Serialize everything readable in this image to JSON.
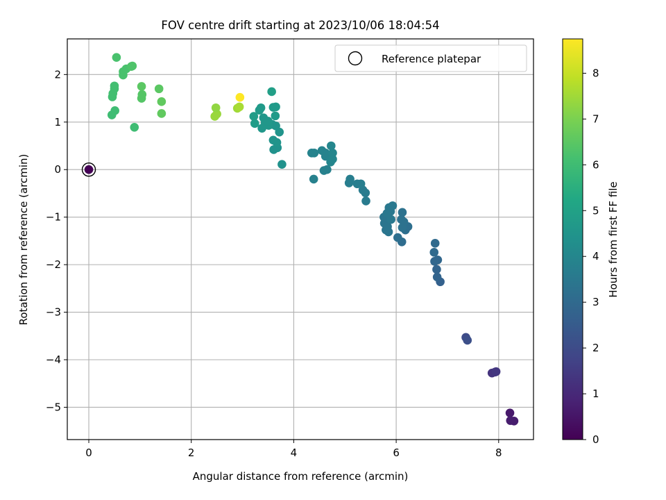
{
  "chart_data": {
    "type": "scatter",
    "title": "FOV centre drift starting at 2023/10/06 18:04:54",
    "xlabel": "Angular distance from reference (arcmin)",
    "ylabel": "Rotation from reference (arcmin)",
    "xlim": [
      -0.42,
      8.68
    ],
    "ylim": [
      -5.68,
      2.75
    ],
    "xticks": [
      {
        "v": 0,
        "label": "0"
      },
      {
        "v": 2,
        "label": "2"
      },
      {
        "v": 4,
        "label": "4"
      },
      {
        "v": 6,
        "label": "6"
      },
      {
        "v": 8,
        "label": "8"
      }
    ],
    "yticks": [
      {
        "v": 2,
        "label": "2"
      },
      {
        "v": 1,
        "label": "1"
      },
      {
        "v": 0,
        "label": "0"
      },
      {
        "v": -1,
        "label": "−1"
      },
      {
        "v": -2,
        "label": "−2"
      },
      {
        "v": -3,
        "label": "−3"
      },
      {
        "v": -4,
        "label": "−4"
      },
      {
        "v": -5,
        "label": "−5"
      }
    ],
    "grid": true,
    "colormap": "viridis",
    "colorbar": {
      "label": "Hours from first FF file",
      "range": [
        0,
        8.75
      ],
      "ticks": [
        {
          "v": 0,
          "label": "0"
        },
        {
          "v": 1,
          "label": "1"
        },
        {
          "v": 2,
          "label": "2"
        },
        {
          "v": 3,
          "label": "3"
        },
        {
          "v": 4,
          "label": "4"
        },
        {
          "v": 5,
          "label": "5"
        },
        {
          "v": 6,
          "label": "6"
        },
        {
          "v": 7,
          "label": "7"
        },
        {
          "v": 8,
          "label": "8"
        }
      ]
    },
    "legend": {
      "placement": "top-right",
      "entries": [
        {
          "label": "Reference platepar",
          "marker": "open-circle"
        }
      ]
    },
    "reference": {
      "x": 0,
      "y": 0,
      "c": 0
    },
    "points": [
      {
        "x": 8.22,
        "y": -5.12,
        "c": 0.6
      },
      {
        "x": 8.23,
        "y": -5.28,
        "c": 0.7
      },
      {
        "x": 8.3,
        "y": -5.29,
        "c": 0.7
      },
      {
        "x": 7.87,
        "y": -4.28,
        "c": 1.3
      },
      {
        "x": 7.93,
        "y": -4.26,
        "c": 1.3
      },
      {
        "x": 7.95,
        "y": -4.25,
        "c": 1.4
      },
      {
        "x": 7.36,
        "y": -3.53,
        "c": 2.0
      },
      {
        "x": 7.39,
        "y": -3.59,
        "c": 2.1
      },
      {
        "x": 6.86,
        "y": -2.36,
        "c": 2.7
      },
      {
        "x": 6.8,
        "y": -2.26,
        "c": 2.8
      },
      {
        "x": 6.79,
        "y": -2.1,
        "c": 2.8
      },
      {
        "x": 6.81,
        "y": -1.9,
        "c": 2.9
      },
      {
        "x": 6.75,
        "y": -1.93,
        "c": 2.9
      },
      {
        "x": 6.74,
        "y": -1.74,
        "c": 3.0
      },
      {
        "x": 6.76,
        "y": -1.55,
        "c": 3.0
      },
      {
        "x": 6.11,
        "y": -1.52,
        "c": 3.1
      },
      {
        "x": 6.03,
        "y": -1.43,
        "c": 3.2
      },
      {
        "x": 6.18,
        "y": -1.27,
        "c": 3.2
      },
      {
        "x": 6.23,
        "y": -1.2,
        "c": 3.2
      },
      {
        "x": 6.12,
        "y": -1.22,
        "c": 3.3
      },
      {
        "x": 6.1,
        "y": -1.05,
        "c": 3.3
      },
      {
        "x": 6.15,
        "y": -1.1,
        "c": 3.3
      },
      {
        "x": 6.12,
        "y": -0.9,
        "c": 3.3
      },
      {
        "x": 5.85,
        "y": -1.31,
        "c": 3.4
      },
      {
        "x": 5.8,
        "y": -1.27,
        "c": 3.4
      },
      {
        "x": 5.77,
        "y": -1.13,
        "c": 3.4
      },
      {
        "x": 5.76,
        "y": -1.0,
        "c": 3.4
      },
      {
        "x": 5.83,
        "y": -1.2,
        "c": 3.4
      },
      {
        "x": 5.9,
        "y": -1.05,
        "c": 3.5
      },
      {
        "x": 5.82,
        "y": -0.92,
        "c": 3.5
      },
      {
        "x": 5.89,
        "y": -0.88,
        "c": 3.5
      },
      {
        "x": 5.86,
        "y": -0.8,
        "c": 3.5
      },
      {
        "x": 5.93,
        "y": -0.76,
        "c": 3.5
      },
      {
        "x": 5.41,
        "y": -0.66,
        "c": 3.6
      },
      {
        "x": 5.4,
        "y": -0.49,
        "c": 3.6
      },
      {
        "x": 5.35,
        "y": -0.43,
        "c": 3.6
      },
      {
        "x": 5.31,
        "y": -0.3,
        "c": 3.7
      },
      {
        "x": 5.24,
        "y": -0.3,
        "c": 3.7
      },
      {
        "x": 5.08,
        "y": -0.28,
        "c": 3.7
      },
      {
        "x": 5.1,
        "y": -0.2,
        "c": 3.7
      },
      {
        "x": 4.39,
        "y": -0.2,
        "c": 3.8
      },
      {
        "x": 4.59,
        "y": -0.02,
        "c": 3.8
      },
      {
        "x": 4.65,
        "y": 0.0,
        "c": 3.8
      },
      {
        "x": 4.62,
        "y": 0.28,
        "c": 3.9
      },
      {
        "x": 4.55,
        "y": 0.4,
        "c": 3.9
      },
      {
        "x": 4.35,
        "y": 0.35,
        "c": 3.9
      },
      {
        "x": 4.4,
        "y": 0.35,
        "c": 3.9
      },
      {
        "x": 4.62,
        "y": 0.35,
        "c": 3.9
      },
      {
        "x": 4.72,
        "y": 0.16,
        "c": 4.0
      },
      {
        "x": 4.76,
        "y": 0.22,
        "c": 4.0
      },
      {
        "x": 4.76,
        "y": 0.35,
        "c": 4.0
      },
      {
        "x": 4.73,
        "y": 0.5,
        "c": 4.0
      },
      {
        "x": 3.77,
        "y": 0.11,
        "c": 4.4
      },
      {
        "x": 3.61,
        "y": 0.42,
        "c": 4.4
      },
      {
        "x": 3.68,
        "y": 0.46,
        "c": 4.4
      },
      {
        "x": 3.67,
        "y": 0.57,
        "c": 4.5
      },
      {
        "x": 3.6,
        "y": 0.62,
        "c": 4.5
      },
      {
        "x": 3.72,
        "y": 0.79,
        "c": 4.5
      },
      {
        "x": 3.65,
        "y": 0.92,
        "c": 4.5
      },
      {
        "x": 3.58,
        "y": 0.95,
        "c": 4.5
      },
      {
        "x": 3.51,
        "y": 0.93,
        "c": 4.6
      },
      {
        "x": 3.44,
        "y": 0.98,
        "c": 4.6
      },
      {
        "x": 3.38,
        "y": 0.87,
        "c": 4.6
      },
      {
        "x": 3.41,
        "y": 1.09,
        "c": 4.6
      },
      {
        "x": 3.5,
        "y": 1.02,
        "c": 4.6
      },
      {
        "x": 3.64,
        "y": 1.13,
        "c": 4.7
      },
      {
        "x": 3.6,
        "y": 1.31,
        "c": 4.7
      },
      {
        "x": 3.65,
        "y": 1.32,
        "c": 4.7
      },
      {
        "x": 3.36,
        "y": 1.3,
        "c": 4.7
      },
      {
        "x": 3.33,
        "y": 1.25,
        "c": 4.7
      },
      {
        "x": 3.24,
        "y": 0.97,
        "c": 4.8
      },
      {
        "x": 3.22,
        "y": 1.12,
        "c": 4.8
      },
      {
        "x": 3.57,
        "y": 1.64,
        "c": 4.9
      },
      {
        "x": 0.45,
        "y": 1.15,
        "c": 6.0
      },
      {
        "x": 0.51,
        "y": 1.24,
        "c": 6.0
      },
      {
        "x": 0.89,
        "y": 0.89,
        "c": 6.0
      },
      {
        "x": 0.46,
        "y": 1.53,
        "c": 6.1
      },
      {
        "x": 0.47,
        "y": 1.6,
        "c": 6.1
      },
      {
        "x": 0.5,
        "y": 1.7,
        "c": 6.1
      },
      {
        "x": 0.5,
        "y": 1.76,
        "c": 6.1
      },
      {
        "x": 0.67,
        "y": 1.99,
        "c": 6.2
      },
      {
        "x": 0.67,
        "y": 2.06,
        "c": 6.2
      },
      {
        "x": 0.73,
        "y": 2.12,
        "c": 6.2
      },
      {
        "x": 0.83,
        "y": 2.17,
        "c": 6.3
      },
      {
        "x": 0.85,
        "y": 2.18,
        "c": 6.3
      },
      {
        "x": 0.54,
        "y": 2.36,
        "c": 6.2
      },
      {
        "x": 1.03,
        "y": 1.5,
        "c": 6.4
      },
      {
        "x": 1.04,
        "y": 1.58,
        "c": 6.4
      },
      {
        "x": 1.03,
        "y": 1.75,
        "c": 6.5
      },
      {
        "x": 1.37,
        "y": 1.7,
        "c": 6.5
      },
      {
        "x": 1.42,
        "y": 1.43,
        "c": 6.6
      },
      {
        "x": 1.42,
        "y": 1.18,
        "c": 6.6
      },
      {
        "x": 2.46,
        "y": 1.12,
        "c": 7.4
      },
      {
        "x": 2.5,
        "y": 1.17,
        "c": 7.4
      },
      {
        "x": 2.48,
        "y": 1.3,
        "c": 7.3
      },
      {
        "x": 2.9,
        "y": 1.29,
        "c": 7.5
      },
      {
        "x": 2.94,
        "y": 1.32,
        "c": 7.6
      },
      {
        "x": 2.95,
        "y": 1.52,
        "c": 8.75
      }
    ]
  }
}
